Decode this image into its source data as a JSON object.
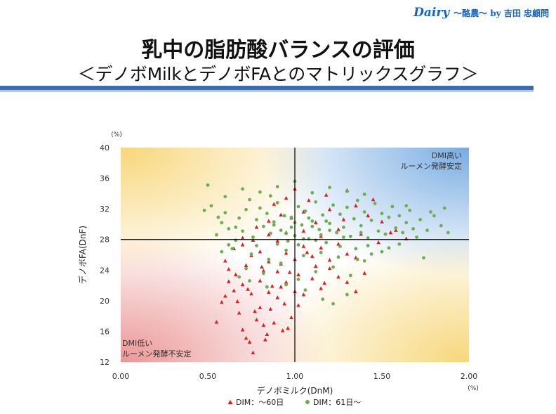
{
  "brand": {
    "name": "Dairy",
    "sub": "～酪農～ by 吉田 忠顧問"
  },
  "header": {
    "title": "乳中の脂肪酸バランスの評価",
    "subtitle": "＜デノボMilkとデノボFAとのマトリックスグラフ＞"
  },
  "chart_data": {
    "type": "scatter",
    "xlabel": "デノボミルク(DnM)",
    "ylabel": "デノボFA(DnF)",
    "x_unit": "(%)",
    "y_unit": "(%)",
    "xlim": [
      0,
      2
    ],
    "ylim": [
      12,
      40
    ],
    "xticks": [
      "0.00",
      "0.50",
      "1.00",
      "1.50",
      "2.00"
    ],
    "yticks": [
      "12",
      "16",
      "20",
      "24",
      "28",
      "32",
      "36",
      "40"
    ],
    "reference_lines": {
      "x": 1.0,
      "y": 28
    },
    "corner_annotations": [
      {
        "position": "top-right",
        "lines": [
          "DMI高い",
          "ルーメン発酵安定"
        ],
        "color": "#4a90d9"
      },
      {
        "position": "bottom-left",
        "lines": [
          "DMI低い",
          "ルーメン発酵不安定"
        ],
        "color": "#e57373"
      },
      {
        "position": "top-left",
        "lines": [],
        "color": "#f4c542"
      },
      {
        "position": "bottom-right",
        "lines": [],
        "color": "#f4c542"
      }
    ],
    "legend_position": "bottom",
    "series": [
      {
        "name": "DIM：～60日",
        "marker": "triangle",
        "color": "#e02020",
        "points": [
          [
            0.62,
            22.5
          ],
          [
            0.58,
            19.8
          ],
          [
            0.55,
            17.2
          ],
          [
            0.6,
            20.6
          ],
          [
            0.65,
            21.3
          ],
          [
            0.68,
            18.4
          ],
          [
            0.7,
            16.2
          ],
          [
            0.72,
            15.1
          ],
          [
            0.74,
            14.6
          ],
          [
            0.76,
            13.2
          ],
          [
            0.78,
            17.5
          ],
          [
            0.8,
            19.1
          ],
          [
            0.82,
            16.8
          ],
          [
            0.84,
            15.6
          ],
          [
            0.86,
            18.9
          ],
          [
            0.88,
            17.1
          ],
          [
            0.9,
            20.4
          ],
          [
            0.92,
            21.8
          ],
          [
            0.94,
            19.6
          ],
          [
            0.96,
            16.4
          ],
          [
            0.98,
            17.8
          ],
          [
            0.66,
            23.4
          ],
          [
            0.7,
            22.1
          ],
          [
            0.75,
            20.9
          ],
          [
            0.8,
            22.6
          ],
          [
            0.85,
            21.1
          ],
          [
            0.9,
            23.8
          ],
          [
            0.95,
            22.4
          ],
          [
            1.0,
            21.2
          ],
          [
            1.02,
            19.4
          ],
          [
            1.05,
            20.8
          ],
          [
            1.1,
            22.9
          ],
          [
            1.15,
            21.6
          ],
          [
            1.2,
            24.2
          ],
          [
            1.25,
            23.1
          ],
          [
            1.3,
            22.4
          ],
          [
            1.35,
            21.2
          ],
          [
            1.4,
            23.6
          ],
          [
            0.6,
            25.2
          ],
          [
            0.65,
            26.8
          ],
          [
            0.7,
            27.3
          ],
          [
            0.75,
            25.9
          ],
          [
            0.8,
            26.4
          ],
          [
            0.85,
            25.1
          ],
          [
            0.9,
            27.8
          ],
          [
            0.95,
            26.2
          ],
          [
            1.0,
            25.4
          ],
          [
            1.05,
            27.1
          ],
          [
            1.1,
            25.8
          ],
          [
            1.15,
            26.9
          ],
          [
            1.2,
            25.3
          ],
          [
            1.25,
            27.4
          ],
          [
            1.3,
            26.1
          ],
          [
            1.35,
            25.6
          ],
          [
            0.62,
            24.1
          ],
          [
            0.72,
            24.6
          ],
          [
            0.82,
            23.9
          ],
          [
            0.92,
            24.8
          ],
          [
            1.02,
            23.4
          ],
          [
            1.12,
            24.5
          ],
          [
            0.78,
            29.6
          ],
          [
            0.85,
            30.4
          ],
          [
            0.92,
            31.2
          ],
          [
            0.98,
            30.8
          ],
          [
            1.05,
            31.6
          ],
          [
            1.12,
            30.2
          ],
          [
            1.2,
            31.9
          ],
          [
            1.28,
            30.6
          ],
          [
            1.35,
            32.4
          ],
          [
            1.42,
            31.1
          ],
          [
            1.5,
            30.3
          ],
          [
            1.58,
            29.2
          ],
          [
            1.64,
            28.1
          ],
          [
            0.88,
            32.6
          ],
          [
            0.95,
            33.4
          ],
          [
            1.0,
            34.6
          ],
          [
            1.08,
            33.1
          ],
          [
            1.18,
            33.8
          ],
          [
            1.3,
            34.4
          ],
          [
            1.45,
            33.2
          ],
          [
            0.85,
            28.6
          ],
          [
            0.95,
            28.9
          ],
          [
            1.05,
            29.1
          ],
          [
            1.15,
            28.4
          ],
          [
            1.25,
            29.3
          ],
          [
            1.38,
            28.7
          ],
          [
            1.48,
            27.6
          ],
          [
            1.55,
            28.9
          ],
          [
            0.7,
            28.2
          ],
          [
            0.76,
            27.9
          ],
          [
            0.87,
            21.9
          ],
          [
            0.77,
            18.6
          ],
          [
            0.67,
            19.9
          ],
          [
            0.83,
            14.9
          ],
          [
            0.93,
            16.1
          ],
          [
            0.73,
            21.5
          ],
          [
            0.81,
            24.4
          ],
          [
            0.97,
            23.7
          ],
          [
            1.07,
            26.3
          ],
          [
            1.17,
            22.3
          ]
        ]
      },
      {
        "name": "DIM：61日～",
        "marker": "circle",
        "color": "#6ab04c",
        "points": [
          [
            0.48,
            31.8
          ],
          [
            0.52,
            32.4
          ],
          [
            0.5,
            35.1
          ],
          [
            0.55,
            28.6
          ],
          [
            0.58,
            30.2
          ],
          [
            0.6,
            31.5
          ],
          [
            0.62,
            29.4
          ],
          [
            0.64,
            26.8
          ],
          [
            0.66,
            27.9
          ],
          [
            0.68,
            30.8
          ],
          [
            0.7,
            29.1
          ],
          [
            0.72,
            31.9
          ],
          [
            0.74,
            33.2
          ],
          [
            0.76,
            28.3
          ],
          [
            0.78,
            30.6
          ],
          [
            0.8,
            32.1
          ],
          [
            0.82,
            29.7
          ],
          [
            0.84,
            31.4
          ],
          [
            0.86,
            28.8
          ],
          [
            0.88,
            30.3
          ],
          [
            0.9,
            32.8
          ],
          [
            0.92,
            29.2
          ],
          [
            0.94,
            31.1
          ],
          [
            0.96,
            27.8
          ],
          [
            0.98,
            30.9
          ],
          [
            1.0,
            28.5
          ],
          [
            1.02,
            32.3
          ],
          [
            1.04,
            29.9
          ],
          [
            1.06,
            31.7
          ],
          [
            1.08,
            28.1
          ],
          [
            1.1,
            30.4
          ],
          [
            1.12,
            32.9
          ],
          [
            1.14,
            29.3
          ],
          [
            1.16,
            31.2
          ],
          [
            1.18,
            27.6
          ],
          [
            1.2,
            30.1
          ],
          [
            1.22,
            32.5
          ],
          [
            1.24,
            28.9
          ],
          [
            1.26,
            31.3
          ],
          [
            1.28,
            29.6
          ],
          [
            1.3,
            32.2
          ],
          [
            1.32,
            28.4
          ],
          [
            1.34,
            30.7
          ],
          [
            1.36,
            33.1
          ],
          [
            1.38,
            29.8
          ],
          [
            1.4,
            31.6
          ],
          [
            1.42,
            28.2
          ],
          [
            1.44,
            30.5
          ],
          [
            1.46,
            32.7
          ],
          [
            1.48,
            29.1
          ],
          [
            1.5,
            31.4
          ],
          [
            1.52,
            28.7
          ],
          [
            1.54,
            30.9
          ],
          [
            1.56,
            32.3
          ],
          [
            1.58,
            29.5
          ],
          [
            1.6,
            31.1
          ],
          [
            1.62,
            28.9
          ],
          [
            1.64,
            30.2
          ],
          [
            1.66,
            31.8
          ],
          [
            1.68,
            29.4
          ],
          [
            1.72,
            30.6
          ],
          [
            1.76,
            29.2
          ],
          [
            1.8,
            31.1
          ],
          [
            1.84,
            29.8
          ],
          [
            1.88,
            28.9
          ],
          [
            0.7,
            34.6
          ],
          [
            0.8,
            34.2
          ],
          [
            0.9,
            34.9
          ],
          [
            1.0,
            35.6
          ],
          [
            1.1,
            34.1
          ],
          [
            1.2,
            34.8
          ],
          [
            1.3,
            34.3
          ],
          [
            1.4,
            33.9
          ],
          [
            0.6,
            33.6
          ],
          [
            0.75,
            26.1
          ],
          [
            0.85,
            25.4
          ],
          [
            0.95,
            26.6
          ],
          [
            1.05,
            25.9
          ],
          [
            1.15,
            26.3
          ],
          [
            1.25,
            25.7
          ],
          [
            1.35,
            26.8
          ],
          [
            0.72,
            24.2
          ],
          [
            0.82,
            23.6
          ],
          [
            0.92,
            24.9
          ],
          [
            1.02,
            22.8
          ],
          [
            1.12,
            23.8
          ],
          [
            1.22,
            24.4
          ],
          [
            1.32,
            23.3
          ],
          [
            1.4,
            25.2
          ],
          [
            0.68,
            23.1
          ],
          [
            0.9,
            27.4
          ],
          [
            0.95,
            28.8
          ],
          [
            1.0,
            30.2
          ],
          [
            1.05,
            28.1
          ],
          [
            1.1,
            29.7
          ],
          [
            1.15,
            28.6
          ],
          [
            1.2,
            29.2
          ],
          [
            0.98,
            29.6
          ],
          [
            1.08,
            30.8
          ],
          [
            1.18,
            30.4
          ],
          [
            1.28,
            28.3
          ],
          [
            1.38,
            28.9
          ],
          [
            1.02,
            27.3
          ],
          [
            1.12,
            27.9
          ],
          [
            0.88,
            29.9
          ],
          [
            0.78,
            27.2
          ],
          [
            0.66,
            29.6
          ],
          [
            0.86,
            33.7
          ],
          [
            1.36,
            25.4
          ],
          [
            1.26,
            27.1
          ],
          [
            1.74,
            25.6
          ],
          [
            1.5,
            26.4
          ],
          [
            1.6,
            27.4
          ],
          [
            1.7,
            28.3
          ],
          [
            0.56,
            30.9
          ],
          [
            1.44,
            26.1
          ],
          [
            0.95,
            22.1
          ],
          [
            1.06,
            21.4
          ],
          [
            1.16,
            20.2
          ],
          [
            0.84,
            21.8
          ],
          [
            0.74,
            22.6
          ],
          [
            1.3,
            20.8
          ],
          [
            1.22,
            19.6
          ],
          [
            1.42,
            27.2
          ],
          [
            1.54,
            26.9
          ],
          [
            1.64,
            32.4
          ],
          [
            1.78,
            31.6
          ],
          [
            1.86,
            32.1
          ],
          [
            0.62,
            27.3
          ],
          [
            0.58,
            26.4
          ]
        ]
      }
    ]
  }
}
